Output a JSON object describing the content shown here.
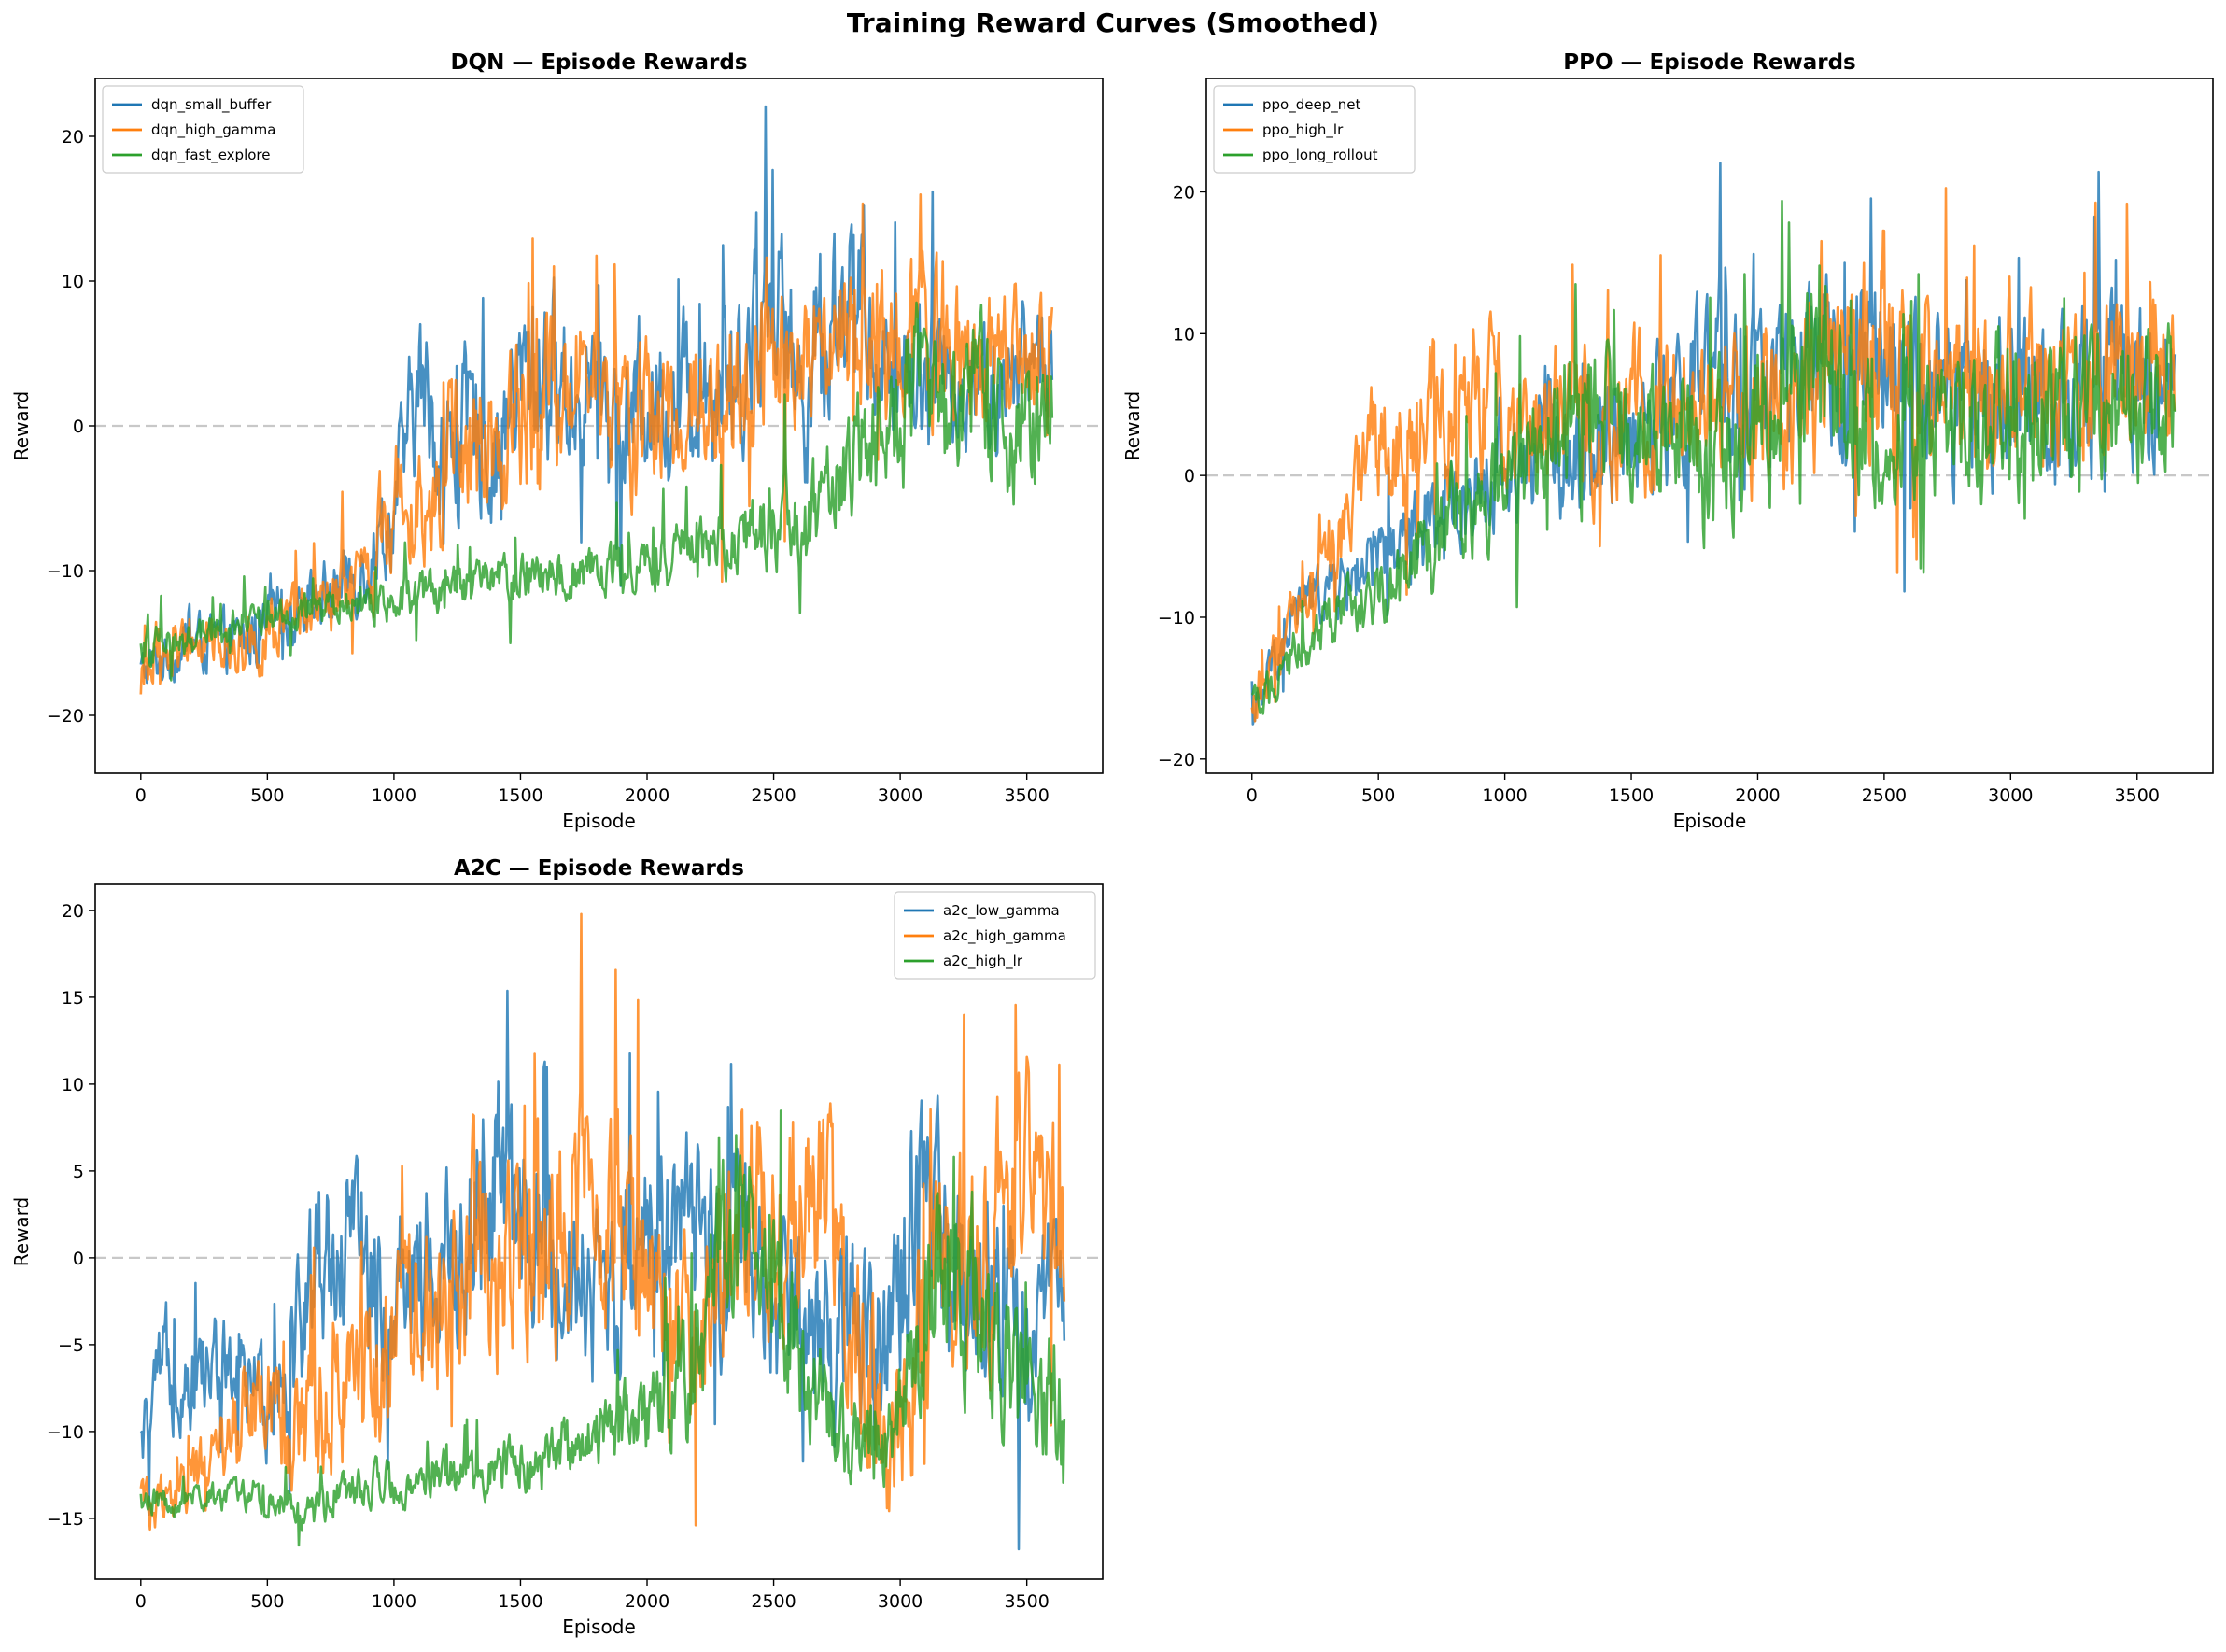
{
  "suptitle": "Training Reward Curves (Smoothed)",
  "chart_data": [
    {
      "type": "line",
      "title": "DQN — Episode Rewards",
      "xlabel": "Episode",
      "ylabel": "Reward",
      "xlim": [
        -180,
        3800
      ],
      "ylim": [
        -24,
        24
      ],
      "xticks": [
        0,
        500,
        1000,
        1500,
        2000,
        2500,
        3000,
        3500
      ],
      "yticks": [
        -20,
        -10,
        0,
        10,
        20
      ],
      "reference_line": 0,
      "legend_loc": "upper-left",
      "series": [
        {
          "name": "dqn_small_buffer",
          "color": "#1f77b4",
          "x": [
            0,
            200,
            400,
            600,
            800,
            900,
            1000,
            1100,
            1200,
            1300,
            1400,
            1500,
            1600,
            1700,
            1800,
            1900,
            2000,
            2100,
            2200,
            2300,
            2400,
            2500,
            2600,
            2700,
            2800,
            2900,
            3000,
            3100,
            3200,
            3300,
            3400,
            3500,
            3600
          ],
          "values": [
            -17,
            -15,
            -15,
            -13,
            -11,
            -9,
            -6,
            3,
            -2,
            0,
            -2,
            3,
            4,
            2,
            4,
            0,
            2,
            1,
            3,
            4,
            5,
            10,
            2,
            6,
            10,
            5,
            3,
            5,
            2,
            4,
            2,
            5,
            4
          ],
          "amp": [
            1.5,
            1.8,
            2,
            2.2,
            2.5,
            3,
            4,
            5,
            5,
            5,
            5,
            6,
            6,
            5,
            5,
            5,
            5,
            5,
            5,
            5,
            6,
            6,
            6,
            6,
            6,
            5,
            5,
            5,
            4,
            4,
            4,
            4,
            4
          ]
        },
        {
          "name": "dqn_high_gamma",
          "color": "#ff7f0e",
          "x": [
            0,
            200,
            400,
            600,
            800,
            900,
            1000,
            1100,
            1200,
            1300,
            1400,
            1500,
            1600,
            1700,
            1800,
            1900,
            2000,
            2100,
            2200,
            2300,
            2400,
            2500,
            2600,
            2700,
            2800,
            2900,
            3000,
            3100,
            3200,
            3300,
            3400,
            3500,
            3600
          ],
          "values": [
            -17,
            -15,
            -15,
            -14,
            -12,
            -10,
            -5,
            -4,
            -3,
            -2,
            -3,
            2,
            3,
            1,
            3,
            0,
            1,
            0,
            2,
            3,
            4,
            5,
            3,
            4,
            6,
            5,
            4,
            6,
            4,
            5,
            3,
            5,
            3
          ],
          "amp": [
            1.5,
            1.8,
            2,
            2.2,
            2.5,
            3,
            4,
            4.5,
            5,
            5,
            5,
            6,
            6,
            5,
            5,
            5,
            5,
            5,
            5,
            5,
            6,
            6,
            5,
            5,
            5,
            5,
            5,
            6,
            5,
            5,
            5,
            5,
            4
          ]
        },
        {
          "name": "dqn_fast_explore",
          "color": "#2ca02c",
          "x": [
            0,
            200,
            400,
            600,
            800,
            1000,
            1200,
            1400,
            1600,
            1800,
            2000,
            2200,
            2400,
            2600,
            2800,
            2900,
            3000,
            3100,
            3200,
            3300,
            3400,
            3500,
            3600
          ],
          "values": [
            -15.5,
            -14.5,
            -13.5,
            -13,
            -12.5,
            -12,
            -11,
            -11,
            -10.5,
            -10,
            -9.5,
            -8.5,
            -7.5,
            -6.5,
            -3,
            -1,
            1,
            2,
            1,
            1,
            0,
            1,
            2
          ],
          "amp": [
            1.2,
            1.2,
            1.2,
            1.3,
            1.3,
            1.5,
            1.5,
            1.6,
            1.6,
            1.8,
            2,
            2,
            2.5,
            3,
            4,
            5,
            5,
            6,
            5,
            5,
            5,
            5,
            4
          ]
        }
      ]
    },
    {
      "type": "line",
      "title": "PPO — Episode Rewards",
      "xlabel": "Episode",
      "ylabel": "Reward",
      "xlim": [
        -180,
        3800
      ],
      "ylim": [
        -21,
        28
      ],
      "xticks": [
        0,
        500,
        1000,
        1500,
        2000,
        2500,
        3000,
        3500
      ],
      "yticks": [
        -20,
        -10,
        0,
        10,
        20
      ],
      "reference_line": 0,
      "legend_loc": "upper-left",
      "series": [
        {
          "name": "ppo_deep_net",
          "color": "#1f77b4",
          "x": [
            0,
            100,
            200,
            300,
            400,
            500,
            600,
            700,
            800,
            1000,
            1200,
            1400,
            1600,
            1800,
            2000,
            2200,
            2400,
            2600,
            2800,
            3000,
            3200,
            3400,
            3650
          ],
          "values": [
            -18,
            -12,
            -9,
            -8,
            -7,
            -6,
            -5,
            -3,
            -2,
            1,
            2,
            3,
            4,
            6,
            7,
            6,
            8,
            6,
            5,
            6,
            5,
            6,
            6
          ],
          "amp": [
            1.5,
            2,
            2,
            2,
            2.5,
            2.5,
            3,
            3,
            3.5,
            4,
            4.5,
            5,
            5,
            6,
            6,
            6,
            6,
            6,
            6,
            6,
            6,
            6,
            5
          ]
        },
        {
          "name": "ppo_high_lr",
          "color": "#ff7f0e",
          "x": [
            0,
            100,
            200,
            300,
            400,
            450,
            500,
            600,
            700,
            800,
            1000,
            1200,
            1400,
            1600,
            1800,
            2000,
            2200,
            2400,
            2500,
            2600,
            2800,
            3000,
            3200,
            3400,
            3650
          ],
          "values": [
            -17,
            -13,
            -9,
            -6,
            -3,
            4,
            1,
            2,
            4,
            5,
            5,
            4,
            3,
            5,
            5,
            4,
            6,
            8,
            10,
            6,
            5,
            7,
            5,
            6,
            8
          ],
          "amp": [
            1.5,
            2,
            2,
            2.5,
            3,
            4,
            4,
            4,
            5,
            5,
            5,
            5,
            5,
            5,
            5,
            5,
            6,
            6,
            7,
            6,
            6,
            6,
            5,
            6,
            6
          ]
        },
        {
          "name": "ppo_long_rollout",
          "color": "#2ca02c",
          "x": [
            0,
            100,
            200,
            300,
            400,
            500,
            600,
            700,
            800,
            1000,
            1200,
            1400,
            1600,
            1800,
            2000,
            2200,
            2400,
            2600,
            2800,
            3000,
            3200,
            3400,
            3650
          ],
          "values": [
            -16,
            -14,
            -12,
            -10,
            -9,
            -8,
            -7,
            -5,
            -3,
            -1,
            2,
            4,
            3,
            2,
            4,
            7,
            4,
            3,
            3,
            5,
            4,
            5,
            5
          ],
          "amp": [
            1.2,
            1.5,
            1.8,
            2,
            2,
            2.5,
            3,
            3,
            3.5,
            4,
            4.5,
            5,
            5,
            6,
            6,
            6,
            5,
            5,
            5,
            6,
            5,
            5,
            5
          ]
        }
      ]
    },
    {
      "type": "line",
      "title": "A2C — Episode Rewards",
      "xlabel": "Episode",
      "ylabel": "Reward",
      "xlim": [
        -180,
        3800
      ],
      "ylim": [
        -18.5,
        21.5
      ],
      "xticks": [
        0,
        500,
        1000,
        1500,
        2000,
        2500,
        3000,
        3500
      ],
      "yticks": [
        -15,
        -10,
        -5,
        0,
        5,
        10,
        15,
        20
      ],
      "reference_line": 0,
      "legend_loc": "upper-right",
      "series": [
        {
          "name": "a2c_low_gamma",
          "color": "#1f77b4",
          "x": [
            0,
            100,
            200,
            300,
            400,
            500,
            600,
            700,
            800,
            900,
            1000,
            1100,
            1200,
            1300,
            1400,
            1500,
            1600,
            1700,
            1800,
            1900,
            2000,
            2100,
            2200,
            2300,
            2400,
            2500,
            2600,
            2700,
            2800,
            2900,
            3000,
            3100,
            3200,
            3300,
            3400,
            3500,
            3650
          ],
          "values": [
            -11,
            -6,
            -7,
            -6,
            -7,
            -8,
            -5,
            0,
            1,
            -2,
            -1,
            0,
            -1,
            2,
            4,
            1,
            -1,
            0,
            -2,
            -1,
            3,
            2,
            1,
            0,
            -1,
            -3,
            -4,
            -5,
            -3,
            -4,
            -2,
            3,
            0,
            -2,
            -3,
            -4,
            -3
          ],
          "amp": [
            2,
            3,
            3,
            3,
            3,
            3,
            4,
            5,
            5,
            5,
            5,
            5,
            5,
            6,
            7,
            6,
            5,
            5,
            5,
            5,
            5,
            5,
            5,
            5,
            5,
            5,
            5,
            5,
            6,
            6,
            6,
            6,
            6,
            5,
            5,
            5,
            5
          ]
        },
        {
          "name": "a2c_high_gamma",
          "color": "#ff7f0e",
          "x": [
            0,
            100,
            200,
            300,
            400,
            500,
            600,
            700,
            800,
            900,
            1000,
            1100,
            1200,
            1300,
            1400,
            1500,
            1600,
            1700,
            1800,
            1900,
            2000,
            2100,
            2200,
            2300,
            2400,
            2500,
            2600,
            2700,
            2800,
            2900,
            3000,
            3100,
            3200,
            3300,
            3400,
            3500,
            3650
          ],
          "values": [
            -14,
            -14,
            -13,
            -11,
            -9,
            -8,
            -10,
            -9,
            -8,
            -7,
            -5,
            -3,
            -2,
            1,
            0,
            1,
            0,
            3,
            5,
            3,
            -2,
            -4,
            -6,
            0,
            3,
            1,
            0,
            4,
            -5,
            -9,
            -10,
            -4,
            -1,
            0,
            2,
            4,
            3
          ],
          "amp": [
            1.5,
            1.5,
            1.5,
            2,
            3,
            3,
            3,
            4,
            4,
            4,
            5,
            5,
            5,
            6,
            6,
            6,
            6,
            6,
            7,
            6,
            5,
            5,
            5,
            6,
            6,
            6,
            7,
            6,
            6,
            5,
            5,
            6,
            6,
            6,
            6,
            6,
            5
          ]
        },
        {
          "name": "a2c_high_lr",
          "color": "#2ca02c",
          "x": [
            0,
            200,
            400,
            600,
            700,
            800,
            1000,
            1200,
            1400,
            1600,
            1800,
            2000,
            2100,
            2200,
            2300,
            2400,
            2500,
            2600,
            2700,
            2800,
            2900,
            3000,
            3100,
            3200,
            3300,
            3400,
            3500,
            3650
          ],
          "values": [
            -14,
            -14,
            -13.5,
            -14,
            -14.5,
            -13,
            -13,
            -12.5,
            -12,
            -11.5,
            -10,
            -9,
            -8,
            -7,
            0,
            2,
            0,
            -6,
            -9,
            -11,
            -11,
            -9,
            -3,
            0,
            -3,
            -6,
            -7,
            -8
          ],
          "amp": [
            0.8,
            0.8,
            0.9,
            1,
            1.2,
            1.2,
            1.2,
            1.3,
            1.4,
            1.5,
            2,
            2.5,
            3,
            4,
            5,
            5,
            5,
            4,
            3,
            2.5,
            2.5,
            3,
            5,
            6,
            5,
            4,
            4,
            4
          ]
        }
      ]
    }
  ]
}
